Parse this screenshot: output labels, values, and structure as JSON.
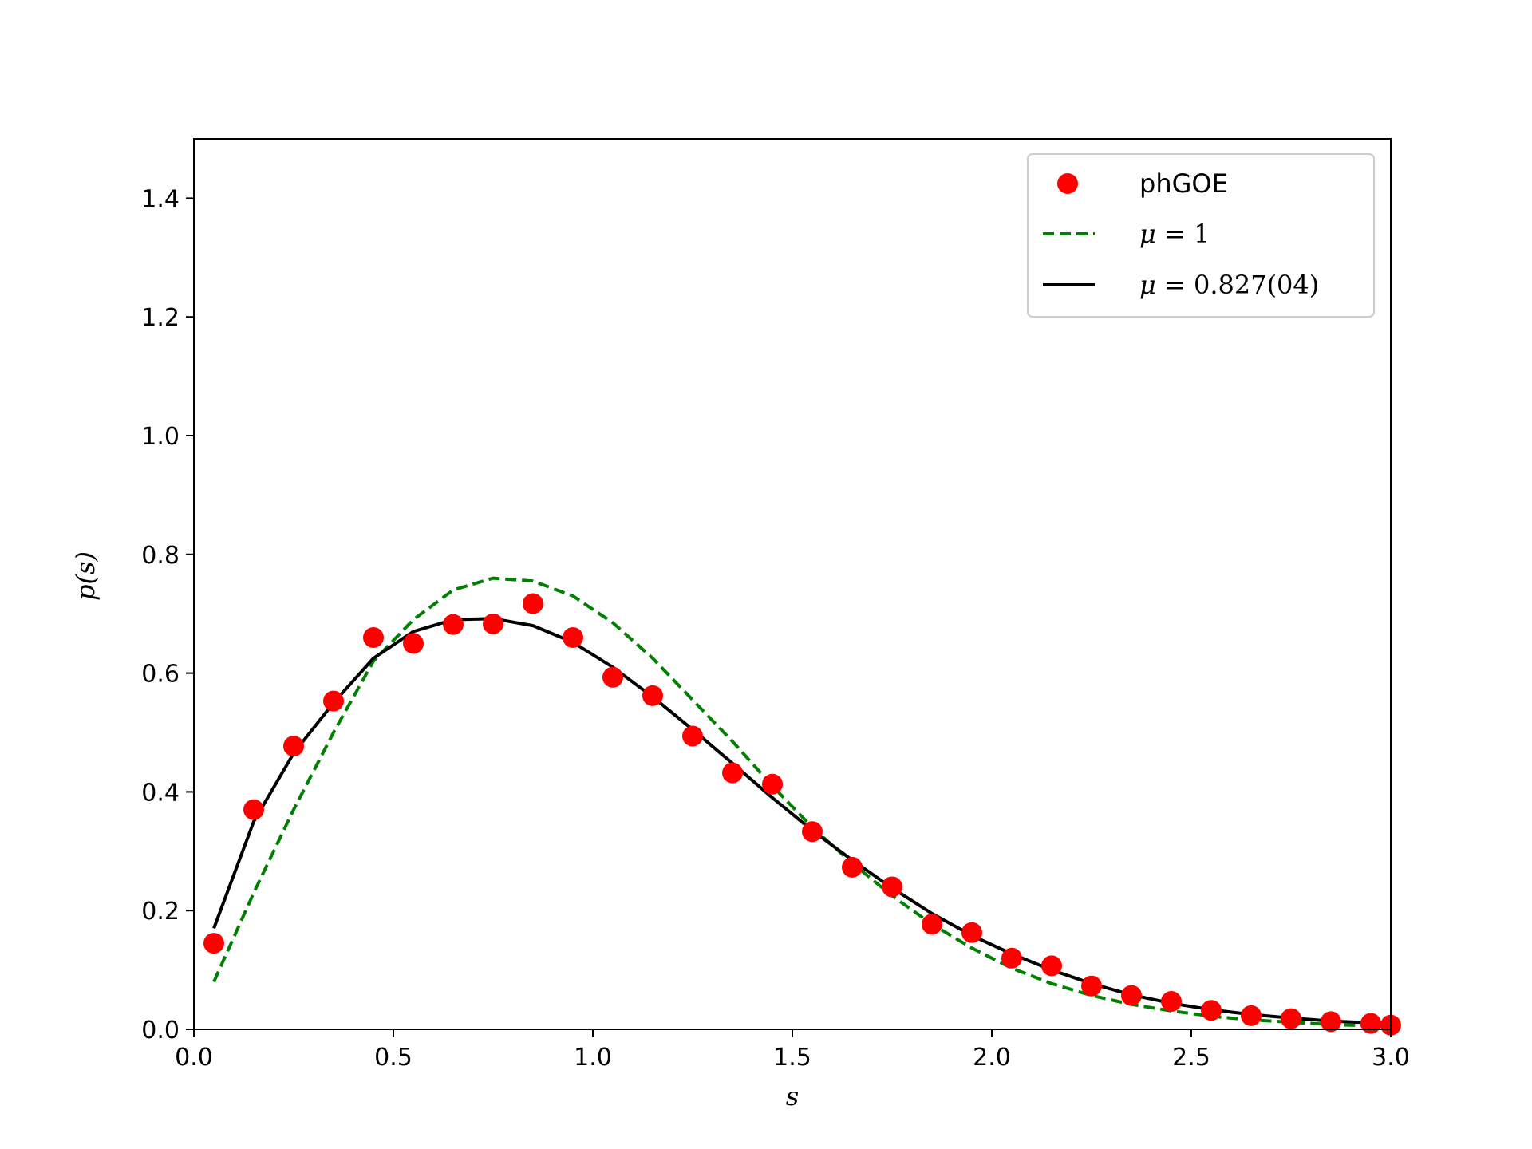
{
  "chart_data": {
    "type": "line",
    "xlabel": "s",
    "ylabel": "p(s)",
    "xlim": [
      0.0,
      3.0
    ],
    "ylim": [
      0.0,
      1.5
    ],
    "xticks": [
      "0.0",
      "0.5",
      "1.0",
      "1.5",
      "2.0",
      "2.5",
      "3.0"
    ],
    "yticks": [
      "0.0",
      "0.2",
      "0.4",
      "0.6",
      "0.8",
      "1.0",
      "1.2",
      "1.4"
    ],
    "grid": false,
    "legend_position": "top-right",
    "series": [
      {
        "name": "phGOE",
        "style": "markers",
        "color": "#ff0000",
        "x": [
          0.05,
          0.15,
          0.25,
          0.35,
          0.45,
          0.55,
          0.65,
          0.75,
          0.85,
          0.95,
          1.05,
          1.15,
          1.25,
          1.35,
          1.45,
          1.55,
          1.65,
          1.75,
          1.85,
          1.95,
          2.05,
          2.15,
          2.25,
          2.35,
          2.45,
          2.55,
          2.65,
          2.75,
          2.85,
          2.95,
          3.0
        ],
        "y": [
          0.145,
          0.37,
          0.477,
          0.553,
          0.66,
          0.65,
          0.682,
          0.683,
          0.717,
          0.66,
          0.593,
          0.562,
          0.494,
          0.432,
          0.413,
          0.333,
          0.273,
          0.24,
          0.177,
          0.163,
          0.12,
          0.107,
          0.073,
          0.057,
          0.047,
          0.032,
          0.023,
          0.018,
          0.013,
          0.01,
          0.007
        ]
      },
      {
        "name": "μ = 1",
        "label_symbol": "μ",
        "label_value": " = 1",
        "style": "dashed",
        "color": "#007f00",
        "x": [
          0.05,
          0.15,
          0.25,
          0.35,
          0.45,
          0.55,
          0.65,
          0.75,
          0.85,
          0.95,
          1.05,
          1.15,
          1.25,
          1.35,
          1.45,
          1.55,
          1.65,
          1.75,
          1.85,
          1.95,
          2.05,
          2.15,
          2.25,
          2.35,
          2.45,
          2.55,
          2.65,
          2.75,
          2.85,
          2.95,
          3.0
        ],
        "y": [
          0.08,
          0.23,
          0.37,
          0.5,
          0.62,
          0.69,
          0.74,
          0.76,
          0.755,
          0.73,
          0.685,
          0.625,
          0.555,
          0.485,
          0.41,
          0.34,
          0.28,
          0.225,
          0.177,
          0.137,
          0.103,
          0.077,
          0.057,
          0.042,
          0.031,
          0.022,
          0.016,
          0.012,
          0.008,
          0.006,
          0.005
        ]
      },
      {
        "name": "μ = 0.827(04)",
        "label_symbol": "μ",
        "label_value": " = 0.827(04)",
        "style": "solid",
        "color": "#000000",
        "x": [
          0.05,
          0.15,
          0.25,
          0.35,
          0.45,
          0.55,
          0.65,
          0.75,
          0.85,
          0.95,
          1.05,
          1.15,
          1.25,
          1.35,
          1.45,
          1.55,
          1.65,
          1.75,
          1.85,
          1.95,
          2.05,
          2.15,
          2.25,
          2.35,
          2.45,
          2.55,
          2.65,
          2.75,
          2.85,
          2.95,
          3.0
        ],
        "y": [
          0.17,
          0.35,
          0.465,
          0.55,
          0.625,
          0.67,
          0.69,
          0.692,
          0.68,
          0.652,
          0.61,
          0.56,
          0.505,
          0.448,
          0.39,
          0.335,
          0.285,
          0.238,
          0.195,
          0.158,
          0.127,
          0.1,
          0.077,
          0.058,
          0.044,
          0.033,
          0.025,
          0.019,
          0.014,
          0.011,
          0.009
        ]
      }
    ]
  }
}
